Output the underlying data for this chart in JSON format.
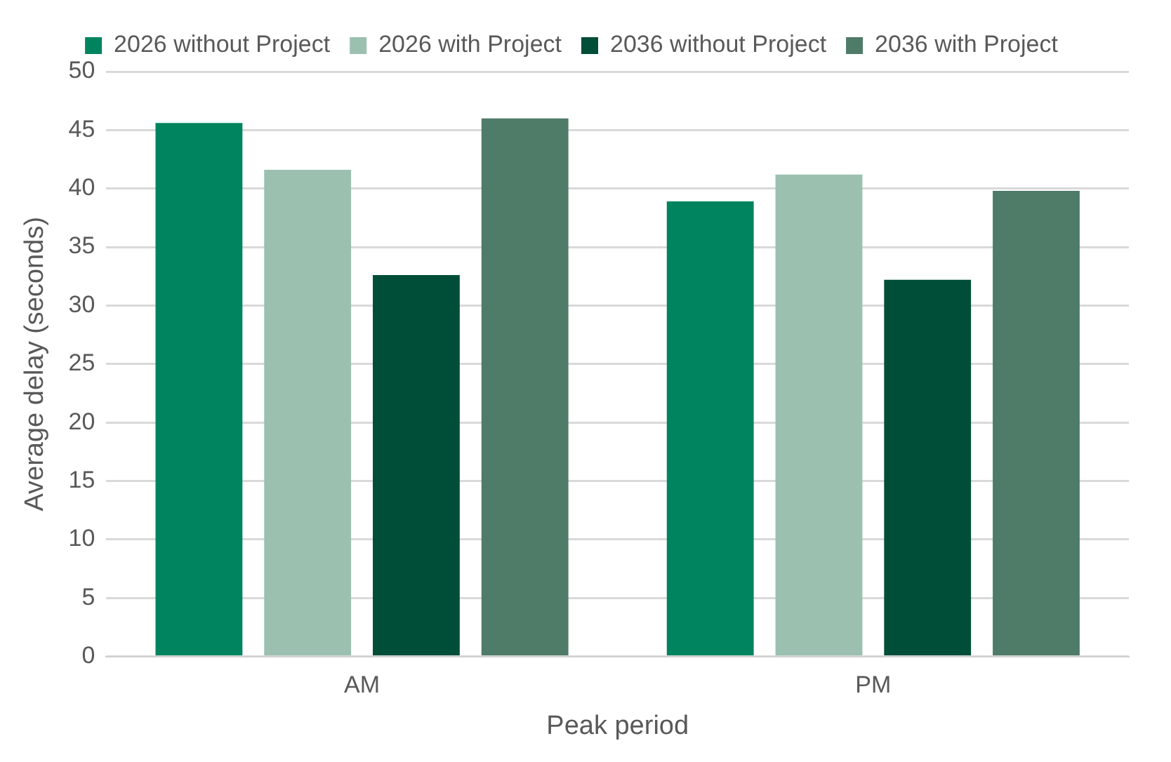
{
  "chart_data": {
    "type": "bar",
    "xlabel": "Peak period",
    "ylabel": "Average delay (seconds)",
    "categories": [
      "AM",
      "PM"
    ],
    "series": [
      {
        "name": "2026 without Project",
        "color": "#00845f",
        "values": [
          45.6,
          38.9
        ]
      },
      {
        "name": "2026 with Project",
        "color": "#9bc0b0",
        "values": [
          41.6,
          41.2
        ]
      },
      {
        "name": "2036 without Project",
        "color": "#004d38",
        "values": [
          32.6,
          32.2
        ]
      },
      {
        "name": "2036 with Project",
        "color": "#4f7b69",
        "values": [
          46.0,
          39.8
        ]
      }
    ],
    "ylim": [
      0,
      50
    ],
    "yticks": [
      0,
      5,
      10,
      15,
      20,
      25,
      30,
      35,
      40,
      45,
      50
    ],
    "grid": "y",
    "legend": "top"
  }
}
